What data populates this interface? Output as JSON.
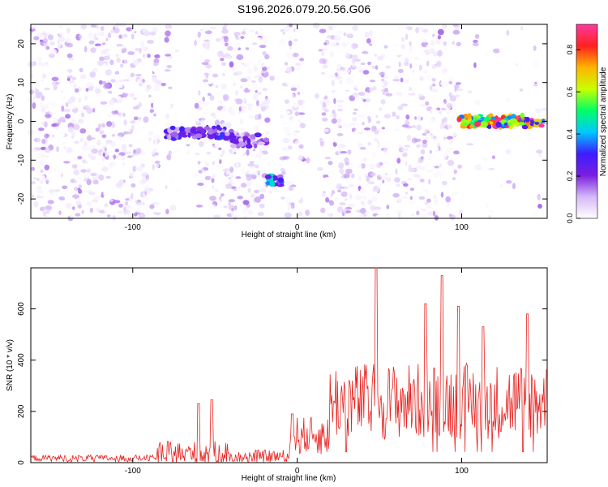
{
  "title": "S196.2026.079.20.56.G06",
  "colors": {
    "signal_line": "#e8221f",
    "axis": "#000000",
    "noise": "#9a55f0"
  },
  "chart_data": [
    {
      "type": "heatmap",
      "xlabel": "Height of straight line (km)",
      "ylabel": "Frequency (Hz)",
      "xlim": [
        -162,
        152
      ],
      "ylim": [
        -25,
        25
      ],
      "x_ticks": [
        -100,
        0,
        100
      ],
      "y_ticks": [
        20,
        10,
        0,
        -10,
        -20
      ],
      "colorbar": {
        "label": "Normalized spectral amplitude",
        "range": [
          0.0,
          0.92
        ],
        "ticks": [
          0.0,
          0.2,
          0.4,
          0.6,
          0.8
        ],
        "colormap": [
          "#ffffff",
          "#d4b8f7",
          "#7a1fe0",
          "#3d1cff",
          "#00c8ff",
          "#00ff66",
          "#c8ff00",
          "#ffb400",
          "#ff2020",
          "#ff3aa0"
        ]
      },
      "features": [
        {
          "x_range": [
            -80,
            -40
          ],
          "frequency": -3,
          "amplitude": 0.3
        },
        {
          "x_range": [
            -40,
            -18
          ],
          "frequency": -5,
          "amplitude": 0.25
        },
        {
          "x_range": [
            -18,
            -10
          ],
          "frequency": -15,
          "amplitude": 0.45
        },
        {
          "x_range": [
            98,
            150
          ],
          "frequency": 0,
          "amplitude": 0.85
        }
      ]
    },
    {
      "type": "line",
      "xlabel": "Height of straight line (km)",
      "ylabel": "SNR (10 * v/v)",
      "xlim": [
        -162,
        152
      ],
      "ylim": [
        0,
        760
      ],
      "x_ticks": [
        -100,
        0,
        100
      ],
      "y_ticks": [
        0,
        200,
        400,
        600
      ],
      "series": [
        {
          "name": "SNR",
          "segments": [
            {
              "x_range": [
                -162,
                -85
              ],
              "base": 15,
              "spread": 25
            },
            {
              "x_range": [
                -85,
                -40
              ],
              "base": 30,
              "spread": 90,
              "peaks": [
                [
                  -60,
                  230
                ],
                [
                  -52,
                  245
                ]
              ]
            },
            {
              "x_range": [
                -40,
                -5
              ],
              "base": 20,
              "spread": 50
            },
            {
              "x_range": [
                -5,
                20
              ],
              "base": 90,
              "spread": 150,
              "peaks": [
                [
                  -3,
                  190
                ]
              ]
            },
            {
              "x_range": [
                20,
                152
              ],
              "base": 210,
              "spread": 300,
              "peaks": [
                [
                  48,
                  760
                ],
                [
                  78,
                  620
                ],
                [
                  88,
                  730
                ],
                [
                  98,
                  610
                ],
                [
                  113,
                  530
                ],
                [
                  140,
                  580
                ]
              ]
            }
          ]
        }
      ]
    }
  ]
}
